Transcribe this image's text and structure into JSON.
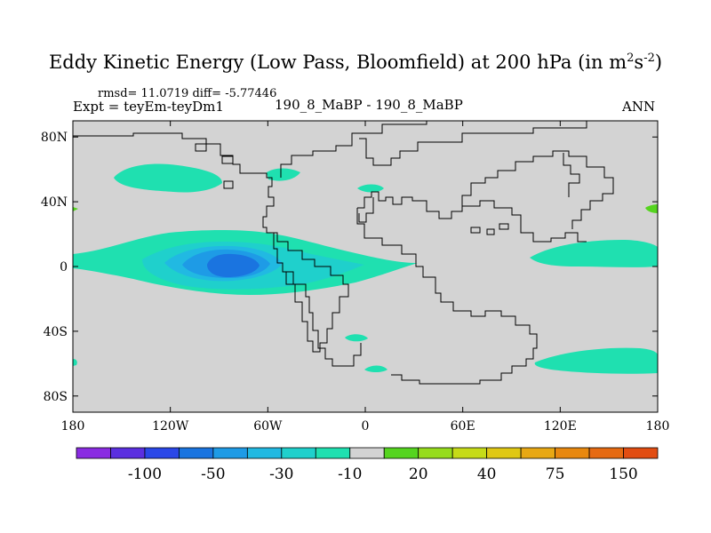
{
  "title": {
    "text": "Eddy Kinetic Energy (Low Pass, Bloomfield) at 200 hPa (in m",
    "sup1": "2",
    "mid": "s",
    "sup2": "-2",
    "close": ")"
  },
  "stats": "rmsd= 11.0719  diff= -5.77446",
  "left_label": "Expt = teyEm-teyDm1",
  "center_label": "190_8_MaBP - 190_8_MaBP",
  "right_label": "ANN",
  "chart_data": {
    "type": "contour-map",
    "projection": "cylindrical-equidistant",
    "xlim": [
      -180,
      180
    ],
    "ylim": [
      -90,
      90
    ],
    "x_ticks": [
      {
        "value": -180,
        "label": "180"
      },
      {
        "value": -120,
        "label": "120W"
      },
      {
        "value": -60,
        "label": "60W"
      },
      {
        "value": 0,
        "label": "0"
      },
      {
        "value": 60,
        "label": "60E"
      },
      {
        "value": 120,
        "label": "120E"
      },
      {
        "value": 180,
        "label": "180"
      }
    ],
    "y_ticks": [
      {
        "value": 80,
        "label": "80N"
      },
      {
        "value": 40,
        "label": "40N"
      },
      {
        "value": 0,
        "label": "0"
      },
      {
        "value": -40,
        "label": "40S"
      },
      {
        "value": -80,
        "label": "80S"
      }
    ],
    "background_level": "-10 to 10 (neutral grey)",
    "anomalies": [
      {
        "region": "central/eastern Pacific to Atlantic, equatorial band",
        "lon_range": [
          -180,
          5
        ],
        "lat_range": [
          -17,
          18
        ],
        "min_level": -100,
        "max_level": -10
      },
      {
        "region": "North Pacific storm track",
        "lon_range": [
          -165,
          -105
        ],
        "lat_range": [
          50,
          62
        ],
        "level": -10
      },
      {
        "region": "Indian Ocean / western Pacific, equatorial",
        "lon_range": [
          100,
          180
        ],
        "lat_range": [
          0,
          10
        ],
        "level": -10
      },
      {
        "region": "Southern Ocean, south of Australia / Pacific",
        "lon_range": [
          105,
          180
        ],
        "lat_range": [
          -70,
          -55
        ],
        "level": -10
      },
      {
        "region": "South Atlantic near Cape",
        "lon_range": [
          -10,
          10
        ],
        "lat_range": [
          -65,
          -60
        ],
        "level": -10
      },
      {
        "region": "Mediterranean / N. Africa small patch",
        "lon_range": [
          -5,
          15
        ],
        "lat_range": [
          45,
          48
        ],
        "level": -10
      },
      {
        "region": "far western North Pacific (dateline)",
        "lon_range": [
          175,
          180
        ],
        "lat_range": [
          34,
          37
        ],
        "level": 20
      },
      {
        "region": "far eastern North Pacific at dateline",
        "lon_range": [
          -180,
          -178
        ],
        "lat_range": [
          33,
          36
        ],
        "level": 20
      }
    ],
    "colorbar": {
      "colors": [
        "#8a2be2",
        "#5b2fe0",
        "#2a47e8",
        "#1a74e0",
        "#1e9be6",
        "#21b9e2",
        "#1fd0cc",
        "#1fe0b0",
        "#d3d3d3",
        "#55d41f",
        "#96dc1c",
        "#c6db18",
        "#e0c814",
        "#e8a814",
        "#e8880f",
        "#e66a12",
        "#e24d12"
      ],
      "labels": [
        {
          "index": 1,
          "text": "-100"
        },
        {
          "index": 3,
          "text": "-50"
        },
        {
          "index": 5,
          "text": "-30"
        },
        {
          "index": 7,
          "text": "-10"
        },
        {
          "index": 9,
          "text": "20"
        },
        {
          "index": 11,
          "text": "40"
        },
        {
          "index": 13,
          "text": "75"
        },
        {
          "index": 15,
          "text": "150"
        }
      ]
    }
  }
}
